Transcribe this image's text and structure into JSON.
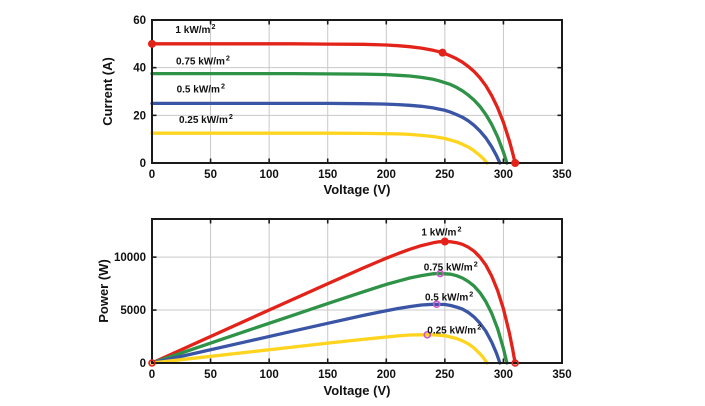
{
  "figure": {
    "background": "#ffffff"
  },
  "colors": {
    "red": "#e3231a",
    "green": "#2e9247",
    "blue": "#3a55a5",
    "yellow": "#ffd41e",
    "magenta": "#cf57c9",
    "grid": "#c9c9c9",
    "axis": "#1a1a1a",
    "text": "#111111"
  },
  "chart_data": [
    {
      "id": "iv-characteristics",
      "type": "line",
      "title": "",
      "xlabel": "Voltage (V)",
      "ylabel": "Current (A)",
      "xlim": [
        0,
        350
      ],
      "ylim": [
        0,
        60
      ],
      "xticks": [
        0,
        50,
        100,
        150,
        200,
        250,
        300,
        350
      ],
      "yticks": [
        0,
        20,
        40,
        60
      ],
      "grid": true,
      "series": [
        {
          "name": "1 kW/m²",
          "color": "red",
          "isc": 50,
          "voc": 310,
          "points": [
            [
              0,
              50
            ],
            [
              40,
              50
            ],
            [
              80,
              50
            ],
            [
              120,
              50
            ],
            [
              150,
              49.9
            ],
            [
              180,
              49.8
            ],
            [
              200,
              49.5
            ],
            [
              210,
              49.2
            ],
            [
              220,
              48.8
            ],
            [
              230,
              48.2
            ],
            [
              240,
              47.3
            ],
            [
              245,
              46.7
            ],
            [
              250,
              45.9
            ],
            [
              255,
              44.9
            ],
            [
              260,
              43.7
            ],
            [
              265,
              42.3
            ],
            [
              270,
              40.5
            ],
            [
              275,
              38.4
            ],
            [
              280,
              35.7
            ],
            [
              285,
              32.4
            ],
            [
              290,
              28.3
            ],
            [
              295,
              23.2
            ],
            [
              300,
              17.1
            ],
            [
              305,
              9.4
            ],
            [
              308,
              4.0
            ],
            [
              310,
              0
            ]
          ]
        },
        {
          "name": "0.75 kW/m²",
          "color": "green",
          "isc": 37.5,
          "voc": 303,
          "points": [
            [
              0,
              37.5
            ],
            [
              40,
              37.5
            ],
            [
              80,
              37.5
            ],
            [
              120,
              37.5
            ],
            [
              150,
              37.4
            ],
            [
              180,
              37.3
            ],
            [
              200,
              37.1
            ],
            [
              210,
              36.8
            ],
            [
              220,
              36.5
            ],
            [
              230,
              35.9
            ],
            [
              240,
              35.1
            ],
            [
              245,
              34.5
            ],
            [
              250,
              33.7
            ],
            [
              255,
              32.9
            ],
            [
              260,
              31.7
            ],
            [
              265,
              30.3
            ],
            [
              270,
              28.5
            ],
            [
              275,
              26.4
            ],
            [
              280,
              23.7
            ],
            [
              285,
              20.3
            ],
            [
              290,
              16.2
            ],
            [
              295,
              11.0
            ],
            [
              300,
              4.6
            ],
            [
              303,
              0
            ]
          ]
        },
        {
          "name": "0.5 kW/m²",
          "color": "blue",
          "isc": 25,
          "voc": 297,
          "points": [
            [
              0,
              25
            ],
            [
              40,
              25
            ],
            [
              80,
              25
            ],
            [
              120,
              25
            ],
            [
              150,
              25
            ],
            [
              180,
              24.9
            ],
            [
              200,
              24.7
            ],
            [
              210,
              24.5
            ],
            [
              220,
              24.2
            ],
            [
              230,
              23.8
            ],
            [
              240,
              23.1
            ],
            [
              245,
              22.6
            ],
            [
              250,
              22.1
            ],
            [
              255,
              21.3
            ],
            [
              260,
              20.3
            ],
            [
              265,
              19.2
            ],
            [
              270,
              17.7
            ],
            [
              275,
              15.8
            ],
            [
              280,
              13.4
            ],
            [
              285,
              10.5
            ],
            [
              290,
              6.8
            ],
            [
              294,
              3.2
            ],
            [
              297,
              0
            ]
          ]
        },
        {
          "name": "0.25 kW/m²",
          "color": "yellow",
          "isc": 12.5,
          "voc": 286,
          "points": [
            [
              0,
              12.5
            ],
            [
              40,
              12.5
            ],
            [
              80,
              12.5
            ],
            [
              120,
              12.5
            ],
            [
              150,
              12.5
            ],
            [
              180,
              12.4
            ],
            [
              200,
              12.3
            ],
            [
              210,
              12.2
            ],
            [
              220,
              12.0
            ],
            [
              230,
              11.6
            ],
            [
              240,
              11.1
            ],
            [
              245,
              10.7
            ],
            [
              250,
              10.3
            ],
            [
              255,
              9.6
            ],
            [
              260,
              8.9
            ],
            [
              265,
              7.9
            ],
            [
              270,
              6.7
            ],
            [
              275,
              5.1
            ],
            [
              280,
              3.1
            ],
            [
              283,
              1.7
            ],
            [
              286,
              0
            ]
          ]
        }
      ],
      "annotations": [
        {
          "text": "1 kW/m²",
          "x": 20,
          "y": 56
        },
        {
          "text": "0.75 kW/m²",
          "x": 20.5,
          "y": 42.8
        },
        {
          "text": "0.5 kW/m²",
          "x": 21,
          "y": 31
        },
        {
          "text": "0.25 kW/m²",
          "x": 23,
          "y": 18.3
        }
      ],
      "markers": [
        {
          "x": 0,
          "y": 50,
          "color": "red",
          "fill": true
        },
        {
          "x": 248,
          "y": 46.3,
          "color": "red",
          "fill": true
        },
        {
          "x": 310,
          "y": 0,
          "color": "red",
          "fill": true
        }
      ]
    },
    {
      "id": "pv-characteristics",
      "type": "line",
      "title": "",
      "xlabel": "Voltage (V)",
      "ylabel": "Power (W)",
      "xlim": [
        0,
        350
      ],
      "ylim": [
        0,
        13600
      ],
      "xticks": [
        0,
        50,
        100,
        150,
        200,
        250,
        300,
        350
      ],
      "yticks": [
        0,
        5000,
        10000
      ],
      "grid": true,
      "series": [
        {
          "name": "1 kW/m²",
          "color": "red",
          "peak_w": 11475,
          "peak_v": 250,
          "points": [
            [
              0,
              0
            ],
            [
              40,
              2000
            ],
            [
              80,
              4000
            ],
            [
              120,
              6000
            ],
            [
              150,
              7485
            ],
            [
              180,
              8964
            ],
            [
              200,
              9900
            ],
            [
              210,
              10332
            ],
            [
              220,
              10736
            ],
            [
              230,
              11086
            ],
            [
              240,
              11352
            ],
            [
              245,
              11442
            ],
            [
              250,
              11475
            ],
            [
              255,
              11450
            ],
            [
              260,
              11362
            ],
            [
              265,
              11210
            ],
            [
              270,
              10935
            ],
            [
              275,
              10560
            ],
            [
              280,
              9996
            ],
            [
              285,
              9234
            ],
            [
              290,
              8207
            ],
            [
              295,
              6844
            ],
            [
              300,
              5130
            ],
            [
              305,
              2867
            ],
            [
              308,
              1232
            ],
            [
              310,
              0
            ]
          ]
        },
        {
          "name": "0.75 kW/m²",
          "color": "green",
          "peak_w": 8453,
          "peak_v": 245,
          "points": [
            [
              0,
              0
            ],
            [
              40,
              1500
            ],
            [
              80,
              3000
            ],
            [
              120,
              4500
            ],
            [
              150,
              5610
            ],
            [
              180,
              6714
            ],
            [
              200,
              7420
            ],
            [
              210,
              7728
            ],
            [
              220,
              8030
            ],
            [
              230,
              8257
            ],
            [
              240,
              8424
            ],
            [
              245,
              8453
            ],
            [
              250,
              8425
            ],
            [
              255,
              8390
            ],
            [
              260,
              8242
            ],
            [
              265,
              8030
            ],
            [
              270,
              7695
            ],
            [
              275,
              7260
            ],
            [
              280,
              6636
            ],
            [
              285,
              5786
            ],
            [
              290,
              4698
            ],
            [
              295,
              3245
            ],
            [
              300,
              1380
            ],
            [
              303,
              0
            ]
          ]
        },
        {
          "name": "0.5 kW/m²",
          "color": "blue",
          "peak_w": 5544,
          "peak_v": 240,
          "points": [
            [
              0,
              0
            ],
            [
              40,
              1000
            ],
            [
              80,
              2000
            ],
            [
              120,
              3000
            ],
            [
              150,
              3750
            ],
            [
              180,
              4482
            ],
            [
              200,
              4940
            ],
            [
              210,
              5145
            ],
            [
              220,
              5324
            ],
            [
              230,
              5474
            ],
            [
              240,
              5544
            ],
            [
              245,
              5537
            ],
            [
              250,
              5525
            ],
            [
              255,
              5432
            ],
            [
              260,
              5278
            ],
            [
              265,
              5088
            ],
            [
              270,
              4779
            ],
            [
              275,
              4345
            ],
            [
              280,
              3752
            ],
            [
              285,
              2993
            ],
            [
              290,
              1972
            ],
            [
              294,
              941
            ],
            [
              297,
              0
            ]
          ]
        },
        {
          "name": "0.25 kW/m²",
          "color": "yellow",
          "peak_w": 2668,
          "peak_v": 230,
          "points": [
            [
              0,
              0
            ],
            [
              40,
              500
            ],
            [
              80,
              1000
            ],
            [
              120,
              1500
            ],
            [
              150,
              1875
            ],
            [
              180,
              2232
            ],
            [
              200,
              2460
            ],
            [
              210,
              2562
            ],
            [
              220,
              2640
            ],
            [
              230,
              2668
            ],
            [
              240,
              2664
            ],
            [
              245,
              2622
            ],
            [
              250,
              2575
            ],
            [
              255,
              2448
            ],
            [
              260,
              2314
            ],
            [
              265,
              2094
            ],
            [
              270,
              1809
            ],
            [
              275,
              1403
            ],
            [
              280,
              868
            ],
            [
              283,
              481
            ],
            [
              286,
              0
            ]
          ]
        }
      ],
      "annotations": [
        {
          "text": "1 kW/m²",
          "x": 230,
          "y": 12380
        },
        {
          "text": "0.75 kW/m²",
          "x": 232,
          "y": 9070
        },
        {
          "text": "0.5 kW/m²",
          "x": 233,
          "y": 6230
        },
        {
          "text": "0.25 kW/m²",
          "x": 235,
          "y": 3120
        }
      ],
      "markers": [
        {
          "x": 0,
          "y": 0,
          "color": "red",
          "fill": false
        },
        {
          "x": 250,
          "y": 11475,
          "color": "red",
          "fill": true
        },
        {
          "x": 310,
          "y": 0,
          "color": "red",
          "fill": false
        },
        {
          "x": 246,
          "y": 8450,
          "color": "magenta",
          "fill": false
        },
        {
          "x": 243,
          "y": 5550,
          "color": "magenta",
          "fill": false
        },
        {
          "x": 235,
          "y": 2660,
          "color": "magenta",
          "fill": false
        }
      ]
    }
  ]
}
